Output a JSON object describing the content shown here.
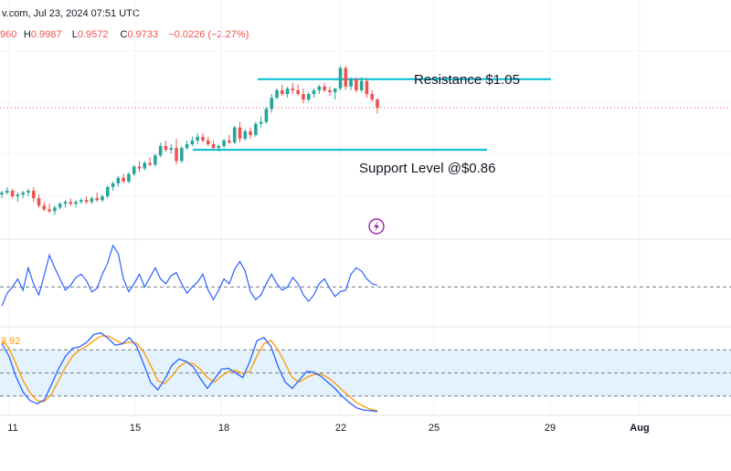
{
  "header": {
    "source_date": "v.com, Jul 23, 2024 07:51 UTC",
    "ohlc": [
      {
        "label": "",
        "value": "960"
      },
      {
        "label": "H",
        "value": "0.9987"
      },
      {
        "label": "L",
        "value": "0.9572"
      },
      {
        "label": "C",
        "value": "0.9733"
      },
      {
        "label": "",
        "value": "−0.0226 (−2.27%)"
      }
    ]
  },
  "annotations": {
    "resistance": "Resistance $1.05",
    "support": "Support Level @$0.86"
  },
  "stoch_label": "3.92",
  "colors": {
    "up": "#26a69a",
    "down": "#ef5350",
    "level_line": "#00bcd4",
    "rsi_line": "#2962ff",
    "stoch_k": "#2962ff",
    "stoch_d": "#ff9800",
    "stoch_band": "#e3f2fd",
    "bolt": "#9c27b0"
  },
  "bolt_icon": "lightning-bolt-icon",
  "chart_data": {
    "type": "candlestick",
    "x_ticks": [
      "11",
      "15",
      "18",
      "22",
      "25",
      "29",
      "Aug"
    ],
    "price_ylim": [
      0.62,
      1.14
    ],
    "last_close": 0.9733,
    "levels": [
      {
        "name": "Resistance $1.05",
        "value": 1.05
      },
      {
        "name": "Support Level @$0.86",
        "value": 0.86
      }
    ],
    "candles": [
      [
        0.74,
        0.75,
        0.73,
        0.745
      ],
      [
        0.745,
        0.76,
        0.74,
        0.75
      ],
      [
        0.75,
        0.755,
        0.73,
        0.735
      ],
      [
        0.735,
        0.745,
        0.72,
        0.74
      ],
      [
        0.74,
        0.75,
        0.73,
        0.745
      ],
      [
        0.745,
        0.755,
        0.735,
        0.75
      ],
      [
        0.75,
        0.76,
        0.72,
        0.73
      ],
      [
        0.73,
        0.74,
        0.705,
        0.71
      ],
      [
        0.71,
        0.72,
        0.695,
        0.7
      ],
      [
        0.7,
        0.715,
        0.69,
        0.695
      ],
      [
        0.695,
        0.71,
        0.685,
        0.705
      ],
      [
        0.705,
        0.72,
        0.7,
        0.715
      ],
      [
        0.715,
        0.725,
        0.705,
        0.72
      ],
      [
        0.72,
        0.73,
        0.71,
        0.715
      ],
      [
        0.715,
        0.725,
        0.705,
        0.72
      ],
      [
        0.72,
        0.73,
        0.715,
        0.725
      ],
      [
        0.725,
        0.735,
        0.715,
        0.72
      ],
      [
        0.72,
        0.735,
        0.715,
        0.73
      ],
      [
        0.73,
        0.745,
        0.72,
        0.725
      ],
      [
        0.725,
        0.74,
        0.72,
        0.735
      ],
      [
        0.735,
        0.765,
        0.73,
        0.76
      ],
      [
        0.76,
        0.775,
        0.75,
        0.77
      ],
      [
        0.77,
        0.79,
        0.76,
        0.785
      ],
      [
        0.785,
        0.795,
        0.77,
        0.775
      ],
      [
        0.775,
        0.8,
        0.77,
        0.795
      ],
      [
        0.795,
        0.82,
        0.79,
        0.815
      ],
      [
        0.815,
        0.83,
        0.8,
        0.81
      ],
      [
        0.81,
        0.83,
        0.805,
        0.825
      ],
      [
        0.825,
        0.84,
        0.815,
        0.82
      ],
      [
        0.82,
        0.85,
        0.815,
        0.845
      ],
      [
        0.845,
        0.88,
        0.84,
        0.87
      ],
      [
        0.87,
        0.885,
        0.855,
        0.86
      ],
      [
        0.86,
        0.875,
        0.85,
        0.865
      ],
      [
        0.865,
        0.89,
        0.82,
        0.83
      ],
      [
        0.83,
        0.87,
        0.825,
        0.865
      ],
      [
        0.865,
        0.885,
        0.86,
        0.875
      ],
      [
        0.875,
        0.895,
        0.87,
        0.885
      ],
      [
        0.885,
        0.905,
        0.875,
        0.895
      ],
      [
        0.895,
        0.905,
        0.88,
        0.885
      ],
      [
        0.885,
        0.895,
        0.87,
        0.875
      ],
      [
        0.875,
        0.885,
        0.86,
        0.865
      ],
      [
        0.865,
        0.875,
        0.855,
        0.87
      ],
      [
        0.87,
        0.89,
        0.865,
        0.885
      ],
      [
        0.885,
        0.9,
        0.875,
        0.88
      ],
      [
        0.88,
        0.925,
        0.875,
        0.92
      ],
      [
        0.92,
        0.935,
        0.88,
        0.89
      ],
      [
        0.89,
        0.915,
        0.885,
        0.91
      ],
      [
        0.91,
        0.92,
        0.89,
        0.9
      ],
      [
        0.9,
        0.935,
        0.895,
        0.93
      ],
      [
        0.93,
        0.95,
        0.92,
        0.935
      ],
      [
        0.935,
        0.975,
        0.93,
        0.97
      ],
      [
        0.97,
        1.01,
        0.96,
        1.0
      ],
      [
        1.0,
        1.025,
        0.995,
        1.02
      ],
      [
        1.02,
        1.035,
        1.005,
        1.01
      ],
      [
        1.01,
        1.03,
        1.0,
        1.025
      ],
      [
        1.025,
        1.04,
        1.01,
        1.02
      ],
      [
        1.02,
        1.035,
        1.005,
        1.01
      ],
      [
        1.01,
        1.025,
        0.985,
        0.995
      ],
      [
        0.995,
        1.015,
        0.99,
        1.01
      ],
      [
        1.01,
        1.025,
        1.0,
        1.02
      ],
      [
        1.02,
        1.035,
        1.01,
        1.03
      ],
      [
        1.03,
        1.04,
        1.015,
        1.02
      ],
      [
        1.02,
        1.03,
        1.005,
        1.015
      ],
      [
        1.015,
        1.025,
        0.995,
        1.025
      ],
      [
        1.025,
        1.085,
        1.02,
        1.08
      ],
      [
        1.08,
        1.085,
        1.02,
        1.03
      ],
      [
        1.03,
        1.055,
        1.02,
        1.05
      ],
      [
        1.05,
        1.055,
        1.015,
        1.02
      ],
      [
        1.02,
        1.055,
        1.015,
        1.045
      ],
      [
        1.045,
        1.05,
        1.0,
        1.01
      ],
      [
        1.01,
        1.02,
        0.99,
        0.995
      ],
      [
        0.995,
        0.9987,
        0.9572,
        0.9733
      ]
    ],
    "rsi_panel": {
      "reference_line": 50,
      "ylim": [
        25,
        80
      ],
      "values": [
        38,
        46,
        50,
        55,
        48,
        62,
        52,
        45,
        57,
        70,
        62,
        55,
        48,
        51,
        56,
        58,
        54,
        47,
        49,
        58,
        65,
        76,
        71,
        55,
        47,
        52,
        58,
        50,
        56,
        62,
        55,
        52,
        57,
        59,
        52,
        46,
        50,
        53,
        58,
        48,
        42,
        48,
        55,
        52,
        61,
        66,
        60,
        47,
        42,
        45,
        52,
        58,
        52,
        48,
        50,
        56,
        52,
        45,
        41,
        45,
        52,
        55,
        49,
        44,
        47,
        48,
        58,
        62,
        60,
        55,
        52,
        51
      ]
    },
    "stochastic_panel": {
      "band": [
        20,
        80
      ],
      "midline": 50,
      "ylim": [
        -5,
        110
      ],
      "k": [
        88,
        72,
        45,
        25,
        14,
        10,
        15,
        35,
        55,
        72,
        82,
        84,
        90,
        100,
        102,
        95,
        86,
        88,
        96,
        85,
        62,
        38,
        28,
        42,
        60,
        68,
        65,
        58,
        43,
        30,
        42,
        55,
        56,
        50,
        44,
        65,
        92,
        96,
        84,
        58,
        38,
        30,
        41,
        52,
        51,
        46,
        38,
        30,
        20,
        12,
        5,
        2,
        1,
        0
      ],
      "d": [
        92,
        82,
        62,
        40,
        24,
        14,
        13,
        22,
        40,
        58,
        72,
        80,
        85,
        92,
        98,
        98,
        93,
        88,
        90,
        89,
        78,
        60,
        40,
        36,
        46,
        58,
        64,
        62,
        55,
        44,
        38,
        46,
        52,
        53,
        49,
        52,
        72,
        88,
        92,
        80,
        62,
        44,
        38,
        44,
        48,
        49,
        44,
        37,
        28,
        20,
        12,
        7,
        3,
        1
      ]
    }
  }
}
